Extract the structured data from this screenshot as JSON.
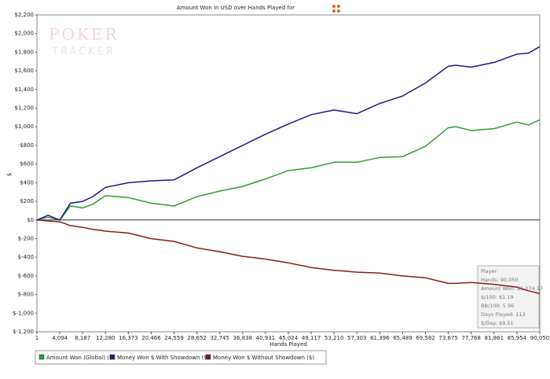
{
  "chart_data": {
    "type": "line",
    "title": "Amount Won in USD over Hands Played for",
    "x_label": "Hands Played",
    "y_label": "$",
    "watermark": [
      "POKER",
      "TRACKER"
    ],
    "x": [
      1,
      2000,
      4094,
      6000,
      8187,
      10000,
      12280,
      16373,
      20466,
      24559,
      28652,
      32745,
      36838,
      40931,
      45024,
      49117,
      53210,
      57303,
      61396,
      65489,
      69582,
      73675,
      75000,
      77768,
      81861,
      85954,
      88000,
      90050
    ],
    "series": [
      {
        "name": "Amount Won (Global) ($)",
        "color": "#2e9e2e",
        "values": [
          0,
          30,
          0,
          150,
          130,
          170,
          260,
          240,
          180,
          150,
          250,
          310,
          360,
          440,
          530,
          560,
          620,
          620,
          670,
          680,
          790,
          990,
          1000,
          960,
          980,
          1050,
          1020,
          1074
        ]
      },
      {
        "name": "Money Won $ With Showdown ($)",
        "color": "#1a1a8c",
        "values": [
          0,
          50,
          0,
          180,
          200,
          250,
          350,
          400,
          420,
          430,
          560,
          680,
          800,
          920,
          1030,
          1130,
          1180,
          1140,
          1250,
          1330,
          1470,
          1650,
          1660,
          1640,
          1690,
          1780,
          1790,
          1860
        ]
      },
      {
        "name": "Money Won $ Without Showdown ($)",
        "color": "#8b1a1a",
        "values": [
          0,
          -10,
          -20,
          -60,
          -80,
          -100,
          -120,
          -140,
          -200,
          -230,
          -300,
          -340,
          -390,
          -420,
          -460,
          -510,
          -540,
          -560,
          -570,
          -600,
          -620,
          -680,
          -680,
          -670,
          -690,
          -720,
          -760,
          -790
        ]
      }
    ],
    "xlim": [
      1,
      90050
    ],
    "xticks": [
      1,
      {
        "value": 4094,
        "label": "4,094"
      },
      {
        "value": 8187,
        "label": "8,187"
      },
      {
        "value": 12280,
        "label": "12,280"
      },
      {
        "value": 16373,
        "label": "16,373"
      },
      {
        "value": 20466,
        "label": "20,466"
      },
      {
        "value": 24559,
        "label": "24,559"
      },
      {
        "value": 28652,
        "label": "28,652"
      },
      {
        "value": 32745,
        "label": "32,745"
      },
      {
        "value": 36838,
        "label": "36,838"
      },
      {
        "value": 40931,
        "label": "40,931"
      },
      {
        "value": 45024,
        "label": "45,024"
      },
      {
        "value": 49117,
        "label": "49,117"
      },
      {
        "value": 53210,
        "label": "53,210"
      },
      {
        "value": 57303,
        "label": "57,303"
      },
      {
        "value": 61396,
        "label": "61,396"
      },
      {
        "value": 65489,
        "label": "65,489"
      },
      {
        "value": 69582,
        "label": "69,582"
      },
      {
        "value": 73675,
        "label": "73,675"
      },
      {
        "value": 77768,
        "label": "77,768"
      },
      {
        "value": 81861,
        "label": "81,861"
      },
      {
        "value": 85954,
        "label": "85,954"
      },
      {
        "value": 90050,
        "label": "90,050"
      }
    ],
    "ylim": [
      -1200,
      2200
    ],
    "yticks": [
      {
        "value": -1200,
        "label": "$-1,200"
      },
      {
        "value": -1000,
        "label": "$-1,000"
      },
      {
        "value": -800,
        "label": "$-800"
      },
      {
        "value": -600,
        "label": "$-600"
      },
      {
        "value": -400,
        "label": "$-400"
      },
      {
        "value": -200,
        "label": "$-200"
      },
      {
        "value": 0,
        "label": "$0"
      },
      {
        "value": 200,
        "label": "$200"
      },
      {
        "value": 400,
        "label": "$400"
      },
      {
        "value": 600,
        "label": "$600"
      },
      {
        "value": 800,
        "label": "$800"
      },
      {
        "value": 1000,
        "label": "$1,000"
      },
      {
        "value": 1200,
        "label": "$1,200"
      },
      {
        "value": 1400,
        "label": "$1,400"
      },
      {
        "value": 1600,
        "label": "$1,600"
      },
      {
        "value": 1800,
        "label": "$1,800"
      },
      {
        "value": 2000,
        "label": "$2,000"
      },
      {
        "value": 2200,
        "label": "$2,200"
      }
    ],
    "grid": false,
    "info_box": [
      "Player:",
      "Hands: 90,050",
      "Amount Won: $1,074.17",
      "$/100: $1.19",
      "BB/100: 5.96",
      "Days Played: 113",
      "$/Day: $9.51"
    ]
  }
}
